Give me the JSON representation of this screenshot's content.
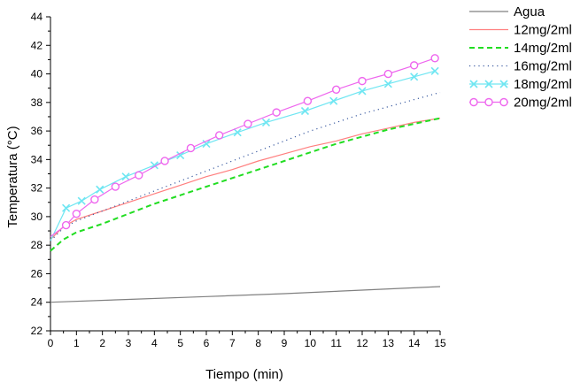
{
  "chart_data": {
    "type": "line",
    "title": "",
    "xlabel": "Tiempo (min)",
    "ylabel": "Temperatura (°C)",
    "xlim": [
      0,
      15
    ],
    "ylim": [
      22,
      44
    ],
    "xticks": [
      "0",
      "1",
      "2",
      "3",
      "4",
      "5",
      "6",
      "7",
      "8",
      "9",
      "10",
      "11",
      "12",
      "13",
      "14",
      "15"
    ],
    "yticks": [
      "22",
      "24",
      "26",
      "28",
      "30",
      "32",
      "34",
      "36",
      "38",
      "40",
      "42",
      "44"
    ],
    "grid": false,
    "legend_position": "top-right-outside",
    "series": [
      {
        "name": "Agua",
        "color": "#808080",
        "style": "solid",
        "marker": "none",
        "x": [
          0,
          3,
          6,
          9,
          12,
          15
        ],
        "y": [
          24.0,
          24.2,
          24.4,
          24.6,
          24.85,
          25.1
        ]
      },
      {
        "name": "12mg/2ml",
        "color": "#ff7f7f",
        "style": "solid",
        "marker": "none",
        "x": [
          0,
          0.5,
          1,
          2,
          3,
          4,
          5,
          6,
          7,
          8,
          9,
          10,
          11,
          12,
          13,
          14,
          15
        ],
        "y": [
          28.4,
          29.3,
          29.8,
          30.4,
          31.0,
          31.6,
          32.2,
          32.8,
          33.3,
          33.9,
          34.4,
          34.9,
          35.3,
          35.8,
          36.2,
          36.6,
          36.9
        ]
      },
      {
        "name": "14mg/2ml",
        "color": "#22dd22",
        "style": "dashed",
        "marker": "none",
        "x": [
          0,
          0.5,
          1,
          2,
          3,
          4,
          5,
          6,
          7,
          8,
          9,
          10,
          11,
          12,
          13,
          14,
          15
        ],
        "y": [
          27.6,
          28.4,
          28.9,
          29.5,
          30.2,
          30.9,
          31.5,
          32.1,
          32.7,
          33.3,
          33.9,
          34.5,
          35.1,
          35.6,
          36.1,
          36.5,
          36.9
        ]
      },
      {
        "name": "16mg/2ml",
        "color": "#3a5aa0",
        "style": "dotted",
        "marker": "none",
        "x": [
          0,
          0.5,
          1,
          2,
          3,
          4,
          5,
          6,
          7,
          8,
          9,
          10,
          11,
          12,
          13,
          14,
          15
        ],
        "y": [
          28.3,
          29.2,
          29.7,
          30.4,
          31.1,
          31.8,
          32.5,
          33.2,
          33.9,
          34.6,
          35.3,
          36.0,
          36.6,
          37.2,
          37.7,
          38.2,
          38.7
        ]
      },
      {
        "name": "18mg/2ml",
        "color": "#6fe6f2",
        "style": "solid",
        "marker": "x",
        "x": [
          0,
          0.6,
          1.2,
          1.9,
          2.9,
          4.0,
          5.0,
          6.0,
          7.2,
          8.3,
          9.8,
          10.9,
          12.0,
          13.0,
          14.0,
          14.8
        ],
        "y": [
          28.3,
          30.6,
          31.1,
          31.9,
          32.8,
          33.6,
          34.3,
          35.1,
          35.9,
          36.6,
          37.4,
          38.1,
          38.8,
          39.3,
          39.8,
          40.2
        ]
      },
      {
        "name": "20mg/2ml",
        "color": "#ee66ee",
        "style": "solid",
        "marker": "o",
        "x": [
          0,
          0.6,
          1.0,
          1.7,
          2.5,
          3.4,
          4.4,
          5.4,
          6.5,
          7.6,
          8.7,
          9.9,
          11.0,
          12.0,
          13.0,
          14.0,
          14.8
        ],
        "y": [
          28.6,
          29.4,
          30.2,
          31.2,
          32.1,
          32.9,
          33.9,
          34.8,
          35.7,
          36.5,
          37.3,
          38.1,
          38.9,
          39.5,
          40.0,
          40.6,
          41.1
        ]
      }
    ]
  }
}
